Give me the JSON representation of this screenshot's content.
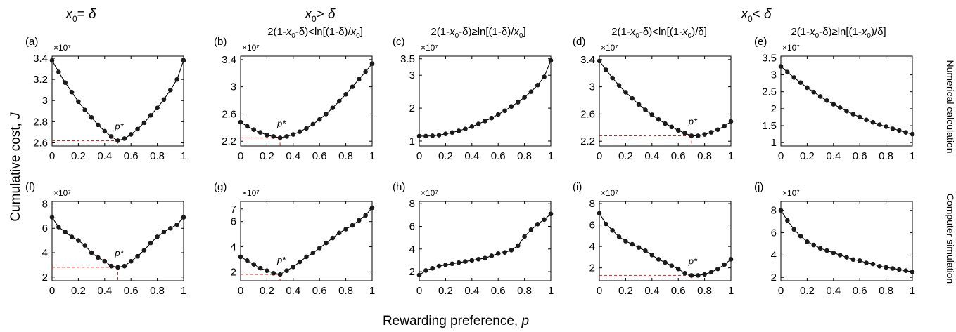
{
  "figure": {
    "column_headers": [
      {
        "sub": "0",
        "op": "= ",
        "rhs": "δ"
      },
      {
        "sub": "0",
        "op": "> ",
        "rhs": "δ"
      },
      {
        "sub": "0",
        "op": "< ",
        "rhs": "δ"
      }
    ],
    "conditions": [
      "2(1-x0-δ)<ln[(1-δ)/x0]",
      "2(1-x0-δ)≥ln[(1-δ)/x0]",
      "2(1-x0-δ)<ln[(1-x0)/δ]",
      "2(1-x0-δ)≥ln[(1-x0)/δ]"
    ],
    "row_labels": [
      "Numerical calculation",
      "Computer simulation"
    ],
    "ylabel": "Cumulative cost,",
    "ylabel_var": "J",
    "xlabel": "Rewarding preference,",
    "xlabel_var": "p",
    "exponent_label": "×10⁷",
    "pstar_label": "p*",
    "colors": {
      "line": "#000000",
      "marker": "#1a1a1a",
      "annotation": "#d62020"
    }
  },
  "chart_data": [
    {
      "panel": "(a)",
      "type": "line",
      "xlim": [
        0,
        1
      ],
      "ylim": [
        2.57,
        3.42
      ],
      "yticks": [
        2.6,
        2.8,
        3,
        3.2,
        3.4
      ],
      "xticks": [
        0,
        0.2,
        0.4,
        0.6,
        0.8,
        1
      ],
      "y_multiplier": "1e7",
      "p_star": 0.5,
      "j_min": 2.62,
      "x": [
        0,
        0.05,
        0.1,
        0.15,
        0.2,
        0.25,
        0.3,
        0.35,
        0.4,
        0.45,
        0.5,
        0.55,
        0.6,
        0.65,
        0.7,
        0.75,
        0.8,
        0.85,
        0.9,
        0.95,
        1
      ],
      "y": [
        3.38,
        3.27,
        3.17,
        3.08,
        2.99,
        2.91,
        2.84,
        2.77,
        2.71,
        2.66,
        2.62,
        2.64,
        2.68,
        2.73,
        2.79,
        2.86,
        2.93,
        3.01,
        3.1,
        3.2,
        3.38
      ]
    },
    {
      "panel": "(b)",
      "type": "line",
      "xlim": [
        0,
        1
      ],
      "ylim": [
        2.13,
        3.45
      ],
      "yticks": [
        2.2,
        2.6,
        3,
        3.4
      ],
      "xticks": [
        0,
        0.2,
        0.4,
        0.6,
        0.8,
        1
      ],
      "y_multiplier": "1e7",
      "p_star": 0.3,
      "j_min": 2.25,
      "x": [
        0,
        0.05,
        0.1,
        0.15,
        0.2,
        0.25,
        0.3,
        0.35,
        0.4,
        0.45,
        0.5,
        0.55,
        0.6,
        0.65,
        0.7,
        0.75,
        0.8,
        0.85,
        0.9,
        0.95,
        1
      ],
      "y": [
        2.48,
        2.42,
        2.37,
        2.33,
        2.29,
        2.27,
        2.25,
        2.27,
        2.3,
        2.34,
        2.39,
        2.45,
        2.52,
        2.6,
        2.69,
        2.79,
        2.89,
        3.0,
        3.11,
        3.22,
        3.34
      ]
    },
    {
      "panel": "(c)",
      "type": "line",
      "xlim": [
        0,
        1
      ],
      "ylim": [
        0.85,
        3.58
      ],
      "yticks": [
        1,
        2,
        3,
        3.5
      ],
      "xticks": [
        0,
        0.2,
        0.4,
        0.6,
        0.8,
        1
      ],
      "y_multiplier": "1e7",
      "x": [
        0,
        0.05,
        0.1,
        0.15,
        0.2,
        0.25,
        0.3,
        0.35,
        0.4,
        0.45,
        0.5,
        0.55,
        0.6,
        0.65,
        0.7,
        0.75,
        0.8,
        0.85,
        0.9,
        0.95,
        1
      ],
      "y": [
        1.15,
        1.15,
        1.16,
        1.18,
        1.22,
        1.26,
        1.31,
        1.37,
        1.44,
        1.52,
        1.61,
        1.7,
        1.81,
        1.92,
        2.05,
        2.18,
        2.33,
        2.5,
        2.7,
        2.95,
        3.45
      ]
    },
    {
      "panel": "(d)",
      "type": "line",
      "xlim": [
        0,
        1
      ],
      "ylim": [
        2.13,
        3.45
      ],
      "yticks": [
        2.2,
        2.6,
        3,
        3.4
      ],
      "xticks": [
        0,
        0.2,
        0.4,
        0.6,
        0.8,
        1
      ],
      "y_multiplier": "1e7",
      "p_star": 0.7,
      "j_min": 2.28,
      "x": [
        0,
        0.05,
        0.1,
        0.15,
        0.2,
        0.25,
        0.3,
        0.35,
        0.4,
        0.45,
        0.5,
        0.55,
        0.6,
        0.65,
        0.7,
        0.75,
        0.8,
        0.85,
        0.9,
        0.95,
        1
      ],
      "y": [
        3.38,
        3.25,
        3.13,
        3.02,
        2.92,
        2.83,
        2.74,
        2.66,
        2.59,
        2.52,
        2.46,
        2.41,
        2.36,
        2.32,
        2.28,
        2.28,
        2.3,
        2.33,
        2.37,
        2.42,
        2.49
      ]
    },
    {
      "panel": "(e)",
      "type": "line",
      "xlim": [
        0,
        1
      ],
      "ylim": [
        0.9,
        3.55
      ],
      "yticks": [
        1,
        1.5,
        2,
        2.5,
        3,
        3.5
      ],
      "xticks": [
        0,
        0.2,
        0.4,
        0.6,
        0.8,
        1
      ],
      "y_multiplier": "1e7",
      "x": [
        0,
        0.05,
        0.1,
        0.15,
        0.2,
        0.25,
        0.3,
        0.35,
        0.4,
        0.45,
        0.5,
        0.55,
        0.6,
        0.65,
        0.7,
        0.75,
        0.8,
        0.85,
        0.9,
        0.95,
        1
      ],
      "y": [
        3.25,
        3.08,
        2.92,
        2.77,
        2.62,
        2.49,
        2.36,
        2.24,
        2.13,
        2.03,
        1.93,
        1.84,
        1.75,
        1.67,
        1.6,
        1.53,
        1.47,
        1.41,
        1.36,
        1.3,
        1.25
      ]
    },
    {
      "panel": "(f)",
      "type": "line",
      "xlim": [
        0,
        1
      ],
      "ylim": [
        1.7,
        8.2
      ],
      "yticks": [
        2,
        4,
        6,
        8
      ],
      "xticks": [
        0,
        0.2,
        0.4,
        0.6,
        0.8,
        1
      ],
      "y_multiplier": "1e7",
      "p_star": 0.5,
      "j_min": 2.8,
      "x": [
        0,
        0.05,
        0.1,
        0.15,
        0.2,
        0.25,
        0.3,
        0.35,
        0.4,
        0.45,
        0.5,
        0.55,
        0.6,
        0.65,
        0.7,
        0.75,
        0.8,
        0.85,
        0.9,
        0.95,
        1
      ],
      "y": [
        6.9,
        6.1,
        5.7,
        5.3,
        5.0,
        4.6,
        4.0,
        3.6,
        3.3,
        2.9,
        2.8,
        2.9,
        3.3,
        3.7,
        4.2,
        4.8,
        5.3,
        5.7,
        6.0,
        6.3,
        6.9
      ]
    },
    {
      "panel": "(g)",
      "type": "line",
      "xlim": [
        0,
        1
      ],
      "ylim": [
        1.3,
        7.6
      ],
      "yticks": [
        2,
        4,
        6,
        7
      ],
      "xticks": [
        0,
        0.2,
        0.4,
        0.6,
        0.8,
        1
      ],
      "y_multiplier": "1e7",
      "p_star": 0.3,
      "j_min": 1.8,
      "x": [
        0,
        0.05,
        0.1,
        0.15,
        0.2,
        0.25,
        0.3,
        0.35,
        0.4,
        0.45,
        0.5,
        0.55,
        0.6,
        0.65,
        0.7,
        0.75,
        0.8,
        0.85,
        0.9,
        0.95,
        1
      ],
      "y": [
        3.2,
        2.9,
        2.6,
        2.3,
        2.1,
        1.9,
        1.8,
        2.1,
        2.4,
        2.8,
        3.2,
        3.5,
        3.9,
        4.3,
        4.7,
        5.1,
        5.4,
        5.7,
        6.1,
        6.5,
        7.1
      ]
    },
    {
      "panel": "(h)",
      "type": "line",
      "xlim": [
        0,
        1
      ],
      "ylim": [
        1.2,
        8.2
      ],
      "yticks": [
        2,
        4,
        6,
        8
      ],
      "xticks": [
        0,
        0.2,
        0.4,
        0.6,
        0.8,
        1
      ],
      "y_multiplier": "1e7",
      "x": [
        0,
        0.05,
        0.1,
        0.15,
        0.2,
        0.25,
        0.3,
        0.35,
        0.4,
        0.45,
        0.5,
        0.55,
        0.6,
        0.65,
        0.7,
        0.75,
        0.8,
        0.85,
        0.9,
        0.95,
        1
      ],
      "y": [
        1.7,
        2.1,
        2.3,
        2.5,
        2.6,
        2.7,
        2.8,
        2.9,
        3.0,
        3.1,
        3.2,
        3.4,
        3.6,
        3.7,
        3.9,
        4.3,
        5.1,
        5.7,
        6.2,
        6.6,
        7.1
      ]
    },
    {
      "panel": "(i)",
      "type": "line",
      "xlim": [
        0,
        1
      ],
      "ylim": [
        0.8,
        8.2
      ],
      "yticks": [
        2,
        4,
        6,
        8
      ],
      "xticks": [
        0,
        0.2,
        0.4,
        0.6,
        0.8,
        1
      ],
      "y_multiplier": "1e7",
      "p_star": 0.7,
      "j_min": 1.3,
      "x": [
        0,
        0.05,
        0.1,
        0.15,
        0.2,
        0.25,
        0.3,
        0.35,
        0.4,
        0.45,
        0.5,
        0.55,
        0.6,
        0.65,
        0.7,
        0.75,
        0.8,
        0.85,
        0.9,
        0.95,
        1
      ],
      "y": [
        7.1,
        6.1,
        5.5,
        4.9,
        4.5,
        4.2,
        3.9,
        3.6,
        3.2,
        2.8,
        2.5,
        2.2,
        1.9,
        1.5,
        1.3,
        1.3,
        1.4,
        1.6,
        1.9,
        2.3,
        2.8
      ]
    },
    {
      "panel": "(j)",
      "type": "line",
      "xlim": [
        0,
        1
      ],
      "ylim": [
        1.7,
        8.8
      ],
      "yticks": [
        2,
        4,
        6,
        8
      ],
      "xticks": [
        0,
        0.2,
        0.4,
        0.6,
        0.8,
        1
      ],
      "y_multiplier": "1e7",
      "x": [
        0,
        0.05,
        0.1,
        0.15,
        0.2,
        0.25,
        0.3,
        0.35,
        0.4,
        0.45,
        0.5,
        0.55,
        0.6,
        0.65,
        0.7,
        0.75,
        0.8,
        0.85,
        0.9,
        0.95,
        1
      ],
      "y": [
        8.0,
        7.1,
        6.3,
        5.7,
        5.2,
        4.9,
        4.6,
        4.4,
        4.2,
        4.0,
        3.8,
        3.6,
        3.5,
        3.3,
        3.2,
        3.0,
        2.9,
        2.8,
        2.7,
        2.6,
        2.5
      ]
    }
  ]
}
